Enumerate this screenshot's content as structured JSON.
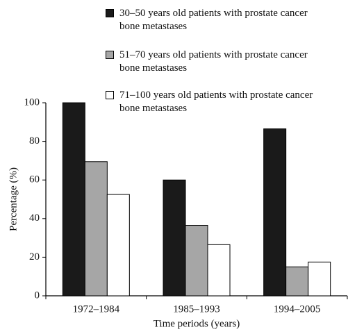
{
  "chart_data": {
    "type": "bar",
    "x_label": "Time periods (years)",
    "y_label": "Percentage (%)",
    "categories": [
      "1972–1984",
      "1985–1993",
      "1994–2005"
    ],
    "series": [
      {
        "name": "30–50 years old patients with prostate cancer bone metastases",
        "color": "#1a1a1a",
        "values": [
          100,
          60,
          86.5
        ]
      },
      {
        "name": "51–70 years old patients with prostate cancer bone metastases",
        "color": "#a6a6a6",
        "values": [
          69.5,
          36.5,
          15
        ]
      },
      {
        "name": "71–100 years old patients with prostate cancer bone metastases",
        "color": "#ffffff",
        "values": [
          52.5,
          26.5,
          17.5
        ]
      }
    ],
    "ylim": [
      0,
      100
    ],
    "yticks": [
      0,
      20,
      40,
      60,
      80,
      100
    ],
    "grid": false
  }
}
